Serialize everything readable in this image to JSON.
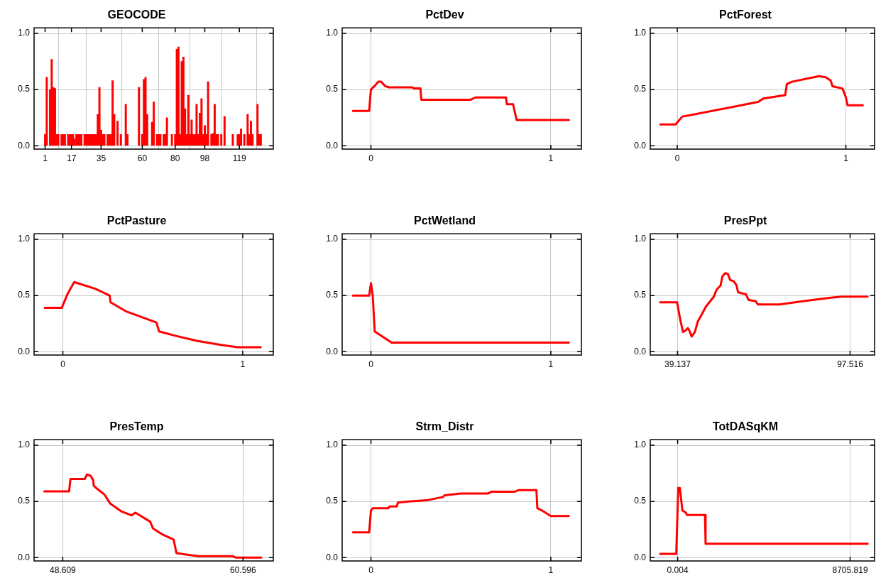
{
  "chart_data": [
    {
      "type": "bar",
      "title": "GEOCODE",
      "color": "#ff0000",
      "grid": true,
      "x": [
        1,
        2,
        4,
        5,
        6,
        7,
        8,
        9,
        11,
        12,
        13,
        15,
        16,
        17,
        18,
        19,
        20,
        21,
        22,
        23,
        25,
        26,
        27,
        28,
        29,
        30,
        31,
        32,
        33,
        34,
        35,
        36,
        37,
        39,
        40,
        41,
        42,
        43,
        45,
        47,
        50,
        51,
        58,
        60,
        61,
        62,
        63,
        66,
        67,
        69,
        70,
        71,
        73,
        74,
        75,
        78,
        80,
        81,
        82,
        83,
        84,
        85,
        86,
        87,
        88,
        89,
        90,
        91,
        92,
        93,
        94,
        95,
        96,
        97,
        98,
        99,
        100,
        102,
        103,
        104,
        105,
        106,
        108,
        110,
        115,
        118,
        119,
        120,
        122,
        124,
        125,
        126,
        127,
        130,
        131,
        132
      ],
      "values": [
        0.1,
        0.61,
        0.5,
        0.77,
        0.52,
        0.51,
        0.1,
        0.1,
        0.1,
        0.1,
        0.1,
        0.1,
        0.1,
        0.1,
        0.1,
        0.06,
        0.1,
        0.1,
        0.1,
        0.1,
        0.1,
        0.1,
        0.1,
        0.1,
        0.1,
        0.1,
        0.1,
        0.1,
        0.28,
        0.52,
        0.14,
        0.1,
        0.1,
        0.1,
        0.1,
        0.1,
        0.58,
        0.28,
        0.22,
        0.1,
        0.37,
        0.1,
        0.52,
        0.1,
        0.59,
        0.61,
        0.28,
        0.21,
        0.39,
        0.1,
        0.1,
        0.1,
        0.1,
        0.1,
        0.25,
        0.1,
        0.1,
        0.86,
        0.88,
        0.1,
        0.75,
        0.79,
        0.33,
        0.1,
        0.45,
        0.1,
        0.23,
        0.1,
        0.1,
        0.37,
        0.1,
        0.29,
        0.42,
        0.1,
        0.18,
        0.1,
        0.57,
        0.1,
        0.11,
        0.37,
        0.1,
        0.1,
        0.1,
        0.26,
        0.1,
        0.1,
        0.1,
        0.15,
        0.1,
        0.28,
        0.1,
        0.22,
        0.1,
        0.37,
        0.1,
        0.1
      ],
      "xlim": [
        -5.7,
        139.6
      ],
      "xticks": [
        1,
        17,
        35,
        60,
        80,
        98,
        119
      ],
      "ylim": [
        -0.03,
        1.05
      ],
      "yticks": [
        {
          "value": 0,
          "label": "0.0"
        },
        {
          "value": 0.5,
          "label": "0.5"
        },
        {
          "value": 1,
          "label": "1.0"
        }
      ]
    },
    {
      "type": "line",
      "title": "PctDev",
      "color": "#ff0000",
      "grid": true,
      "x": [
        -0.1,
        -0.01,
        0,
        0.025,
        0.04,
        0.057,
        0.08,
        0.1,
        0.23,
        0.24,
        0.275,
        0.28,
        0.555,
        0.58,
        0.75,
        0.756,
        0.79,
        0.81,
        1.1
      ],
      "values": [
        0.31,
        0.31,
        0.5,
        0.54,
        0.57,
        0.57,
        0.53,
        0.52,
        0.52,
        0.51,
        0.51,
        0.41,
        0.41,
        0.43,
        0.43,
        0.37,
        0.37,
        0.23,
        0.23
      ],
      "xlim": [
        -0.16,
        1.17
      ],
      "xticks": [
        0,
        1
      ],
      "ylim": [
        -0.03,
        1.05
      ],
      "yticks": [
        {
          "value": 0,
          "label": "0.0"
        },
        {
          "value": 0.5,
          "label": "0.5"
        },
        {
          "value": 1,
          "label": "1.0"
        }
      ]
    },
    {
      "type": "line",
      "title": "PctForest",
      "color": "#ff0000",
      "grid": true,
      "x": [
        -0.1,
        -0.01,
        0.03,
        0.07,
        0.48,
        0.51,
        0.64,
        0.65,
        0.68,
        0.84,
        0.88,
        0.91,
        0.92,
        0.98,
        1.0,
        1.01,
        1.1
      ],
      "values": [
        0.19,
        0.19,
        0.26,
        0.27,
        0.39,
        0.42,
        0.45,
        0.55,
        0.57,
        0.62,
        0.61,
        0.58,
        0.53,
        0.51,
        0.43,
        0.36,
        0.36
      ],
      "xlim": [
        -0.16,
        1.17
      ],
      "xticks": [
        0,
        1
      ],
      "ylim": [
        -0.03,
        1.05
      ],
      "yticks": [
        {
          "value": 0,
          "label": "0.0"
        },
        {
          "value": 0.5,
          "label": "0.5"
        },
        {
          "value": 1,
          "label": "1.0"
        }
      ]
    },
    {
      "type": "line",
      "title": "PctPasture",
      "color": "#ff0000",
      "grid": true,
      "x": [
        -0.1,
        -0.006,
        0.025,
        0.063,
        0.18,
        0.26,
        0.265,
        0.35,
        0.52,
        0.535,
        0.63,
        0.75,
        0.88,
        0.97,
        1.1
      ],
      "values": [
        0.39,
        0.39,
        0.51,
        0.62,
        0.56,
        0.5,
        0.44,
        0.36,
        0.26,
        0.18,
        0.14,
        0.095,
        0.06,
        0.04,
        0.04
      ],
      "xlim": [
        -0.16,
        1.17
      ],
      "xticks": [
        0,
        1
      ],
      "ylim": [
        -0.03,
        1.05
      ],
      "yticks": [
        {
          "value": 0,
          "label": "0.0"
        },
        {
          "value": 0.5,
          "label": "0.5"
        },
        {
          "value": 1,
          "label": "1.0"
        }
      ]
    },
    {
      "type": "line",
      "title": "PctWetland",
      "color": "#ff0000",
      "grid": true,
      "x": [
        -0.1,
        -0.01,
        0,
        0.01,
        0.021,
        0.058,
        0.115,
        1.1
      ],
      "values": [
        0.5,
        0.5,
        0.61,
        0.5,
        0.18,
        0.14,
        0.08,
        0.08
      ],
      "xlim": [
        -0.16,
        1.17
      ],
      "xticks": [
        0,
        1
      ],
      "ylim": [
        -0.03,
        1.05
      ],
      "yticks": [
        {
          "value": 0,
          "label": "0.0"
        },
        {
          "value": 0.5,
          "label": "0.5"
        },
        {
          "value": 1,
          "label": "1.0"
        }
      ]
    },
    {
      "type": "line",
      "title": "PresPpt",
      "color": "#ff0000",
      "grid": true,
      "x": [
        33.2,
        39.0,
        40.0,
        41.0,
        41.9,
        42.6,
        43.1,
        43.9,
        45.0,
        46.0,
        47.3,
        48.7,
        51.4,
        52.3,
        53.7,
        54.3,
        55.3,
        56.2,
        56.9,
        58.2,
        59.1,
        59.6,
        62.3,
        63.2,
        65.5,
        66.4,
        73.7,
        81.9,
        91.0,
        94.6,
        103.4
      ],
      "values": [
        0.44,
        0.44,
        0.29,
        0.175,
        0.19,
        0.21,
        0.19,
        0.135,
        0.175,
        0.27,
        0.33,
        0.4,
        0.49,
        0.55,
        0.59,
        0.67,
        0.7,
        0.69,
        0.64,
        0.625,
        0.59,
        0.53,
        0.51,
        0.46,
        0.45,
        0.42,
        0.42,
        0.45,
        0.48,
        0.49,
        0.49
      ],
      "xlim": [
        29.9,
        105.8
      ],
      "xticks": [
        39.137,
        97.516
      ],
      "ylim": [
        -0.03,
        1.05
      ],
      "yticks": [
        {
          "value": 0,
          "label": "0.0"
        },
        {
          "value": 0.5,
          "label": "0.5"
        },
        {
          "value": 1,
          "label": "1.0"
        }
      ]
    },
    {
      "type": "line",
      "title": "PresTemp",
      "color": "#ff0000",
      "grid": true,
      "x": [
        47.38,
        49.03,
        49.12,
        50.07,
        50.22,
        50.45,
        50.63,
        50.67,
        50.92,
        51.39,
        51.77,
        52.53,
        53.19,
        53.44,
        54.42,
        54.61,
        55.18,
        55.98,
        56.17,
        56.89,
        57.64,
        59.9,
        60.1,
        61.81
      ],
      "values": [
        0.59,
        0.59,
        0.7,
        0.7,
        0.74,
        0.73,
        0.69,
        0.64,
        0.61,
        0.56,
        0.48,
        0.41,
        0.376,
        0.4,
        0.32,
        0.26,
        0.21,
        0.16,
        0.04,
        0.026,
        0.013,
        0.013,
        0,
        0
      ],
      "xlim": [
        46.7,
        62.61
      ],
      "xticks": [
        48.609,
        60.596
      ],
      "ylim": [
        -0.03,
        1.05
      ],
      "yticks": [
        {
          "value": 0,
          "label": "0.0"
        },
        {
          "value": 0.5,
          "label": "0.5"
        },
        {
          "value": 1,
          "label": "1.0"
        }
      ]
    },
    {
      "type": "line",
      "title": "Strm_Distr",
      "color": "#ff0000",
      "grid": true,
      "x": [
        -0.1,
        -0.01,
        0,
        0.01,
        0.096,
        0.104,
        0.143,
        0.15,
        0.21,
        0.31,
        0.4,
        0.41,
        0.5,
        0.65,
        0.67,
        0.8,
        0.82,
        0.92,
        0.925,
        0.95,
        1.0,
        1.1
      ],
      "values": [
        0.225,
        0.225,
        0.42,
        0.44,
        0.44,
        0.455,
        0.455,
        0.49,
        0.5,
        0.51,
        0.54,
        0.555,
        0.57,
        0.57,
        0.587,
        0.587,
        0.6,
        0.6,
        0.44,
        0.42,
        0.37,
        0.37
      ],
      "xlim": [
        -0.16,
        1.17
      ],
      "xticks": [
        0,
        1
      ],
      "ylim": [
        -0.03,
        1.05
      ],
      "yticks": [
        {
          "value": 0,
          "label": "0.0"
        },
        {
          "value": 0.5,
          "label": "0.5"
        },
        {
          "value": 1,
          "label": "1.0"
        }
      ]
    },
    {
      "type": "line",
      "title": "TotDASqKM",
      "color": "#ff0000",
      "grid": true,
      "x": [
        -880,
        -70,
        30,
        110,
        240,
        410,
        470,
        1380,
        1410,
        9590
      ],
      "values": [
        0.034,
        0.034,
        0.62,
        0.62,
        0.42,
        0.4,
        0.38,
        0.38,
        0.124,
        0.124
      ],
      "xlim": [
        -1383,
        9940
      ],
      "xticks": [
        0.004,
        8705.819
      ],
      "ylim": [
        -0.03,
        1.05
      ],
      "yticks": [
        {
          "value": 0,
          "label": "0.0"
        },
        {
          "value": 0.5,
          "label": "0.5"
        },
        {
          "value": 1,
          "label": "1.0"
        }
      ]
    }
  ]
}
